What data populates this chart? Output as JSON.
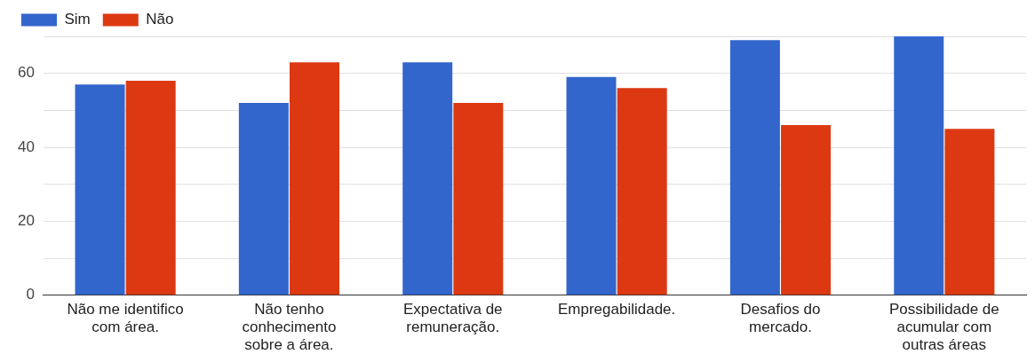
{
  "chart_data": {
    "type": "bar",
    "categories": [
      "Não me identifico com área.",
      "Não tenho conhecimento sobre a área.",
      "Expectativa de remuneração.",
      "Empregabilidade.",
      "Desafios do mercado.",
      "Possibilidade de acumular com outras áreas"
    ],
    "series": [
      {
        "name": "Sim",
        "color": "#3366cc",
        "values": [
          57,
          52,
          63,
          59,
          69,
          70
        ]
      },
      {
        "name": "Não",
        "color": "#dc3912",
        "values": [
          58,
          63,
          52,
          56,
          46,
          45
        ]
      }
    ],
    "ylim": [
      0,
      70
    ],
    "yticks": [
      0,
      {
        "value": 10,
        "label": null
      },
      20,
      {
        "value": 30,
        "label": null
      },
      40,
      {
        "value": 50,
        "label": null
      },
      60,
      {
        "value": 70,
        "label": null
      }
    ],
    "grid": "y",
    "legend": "top left"
  }
}
